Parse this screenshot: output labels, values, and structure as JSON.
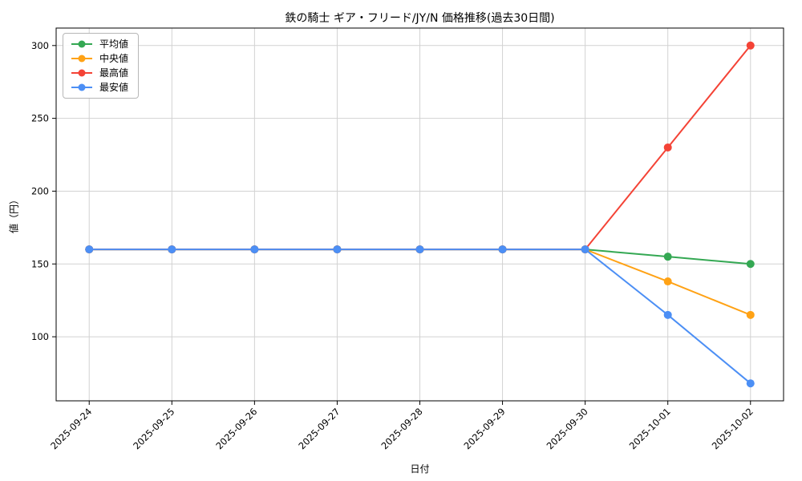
{
  "chart_data": {
    "type": "line",
    "title": "鉄の騎士 ギア・フリード/JY/N 価格推移(過去30日間)",
    "xlabel": "日付",
    "ylabel": "値（円）",
    "x": [
      "2025-09-24",
      "2025-09-25",
      "2025-09-26",
      "2025-09-27",
      "2025-09-28",
      "2025-09-29",
      "2025-09-30",
      "2025-10-01",
      "2025-10-02"
    ],
    "series": [
      {
        "key": "average",
        "name": "平均値",
        "color": "#34a853",
        "values": [
          160,
          160,
          160,
          160,
          160,
          160,
          160,
          155,
          150
        ]
      },
      {
        "key": "median",
        "name": "中央値",
        "color": "#ffa215",
        "values": [
          160,
          160,
          160,
          160,
          160,
          160,
          160,
          138,
          115
        ]
      },
      {
        "key": "max",
        "name": "最高値",
        "color": "#f44336",
        "values": [
          160,
          160,
          160,
          160,
          160,
          160,
          160,
          230,
          300
        ]
      },
      {
        "key": "min",
        "name": "最安値",
        "color": "#4c8ff5",
        "values": [
          160,
          160,
          160,
          160,
          160,
          160,
          160,
          115,
          68
        ]
      }
    ],
    "ylim": [
      56,
      312
    ],
    "yticks": [
      100,
      150,
      200,
      250,
      300
    ],
    "grid": true,
    "legend_position": "upper left"
  }
}
